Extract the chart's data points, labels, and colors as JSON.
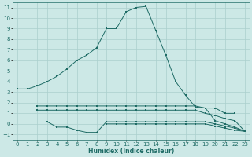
{
  "xlabel": "Humidex (Indice chaleur)",
  "xlim": [
    -0.5,
    23.5
  ],
  "ylim": [
    -1.5,
    11.5
  ],
  "xticks": [
    0,
    1,
    2,
    3,
    4,
    5,
    6,
    7,
    8,
    9,
    10,
    11,
    12,
    13,
    14,
    15,
    16,
    17,
    18,
    19,
    20,
    21,
    22,
    23
  ],
  "yticks": [
    -1,
    0,
    1,
    2,
    3,
    4,
    5,
    6,
    7,
    8,
    9,
    10,
    11
  ],
  "background_color": "#cce8e6",
  "grid_color": "#aacfcd",
  "line_color": "#1e6b65",
  "line1_x": [
    0,
    1,
    2,
    3,
    4,
    5,
    6,
    7,
    8,
    9,
    10,
    11,
    12,
    13,
    14,
    15,
    16,
    17,
    18,
    19,
    20,
    21,
    22,
    23
  ],
  "line1_y": [
    3.3,
    3.3,
    3.6,
    4.0,
    4.5,
    5.2,
    6.0,
    6.5,
    7.2,
    9.0,
    9.0,
    10.6,
    11.0,
    11.1,
    8.8,
    6.5,
    4.0,
    2.7,
    1.6,
    1.5,
    0.3,
    0.0,
    -0.3,
    -0.7
  ],
  "line2_x": [
    2,
    3,
    4,
    5,
    6,
    7,
    8,
    9,
    10,
    11,
    12,
    13,
    14,
    15,
    16,
    17,
    18,
    19,
    20,
    21,
    22
  ],
  "line2_y": [
    1.7,
    1.7,
    1.7,
    1.7,
    1.7,
    1.7,
    1.7,
    1.7,
    1.7,
    1.7,
    1.7,
    1.7,
    1.7,
    1.7,
    1.7,
    1.7,
    1.7,
    1.5,
    1.5,
    1.0,
    1.0
  ],
  "line3_x": [
    2,
    3,
    4,
    5,
    6,
    7,
    8,
    9,
    10,
    11,
    12,
    13,
    14,
    15,
    16,
    17,
    18,
    19,
    20,
    21,
    22,
    23
  ],
  "line3_y": [
    1.3,
    1.3,
    1.3,
    1.3,
    1.3,
    1.3,
    1.3,
    1.3,
    1.3,
    1.3,
    1.3,
    1.3,
    1.3,
    1.3,
    1.3,
    1.3,
    1.3,
    1.0,
    0.8,
    0.5,
    0.3,
    -0.7
  ],
  "line4_x": [
    3,
    4,
    5,
    6,
    7,
    8,
    9,
    10,
    11,
    12,
    13,
    14,
    15,
    16,
    17,
    18,
    19,
    20,
    21,
    22,
    23
  ],
  "line4_y": [
    0.2,
    -0.3,
    -0.3,
    -0.6,
    -0.8,
    -0.8,
    0.2,
    0.2,
    0.2,
    0.2,
    0.2,
    0.2,
    0.2,
    0.2,
    0.2,
    0.2,
    0.2,
    0.0,
    -0.2,
    -0.4,
    -0.7
  ],
  "line5_x": [
    9,
    10,
    11,
    12,
    13,
    14,
    15,
    16,
    17,
    18,
    19,
    20,
    21,
    22,
    23
  ],
  "line5_y": [
    0.0,
    0.0,
    0.0,
    0.0,
    0.0,
    0.0,
    0.0,
    0.0,
    0.0,
    0.0,
    0.0,
    -0.2,
    -0.4,
    -0.6,
    -0.7
  ]
}
